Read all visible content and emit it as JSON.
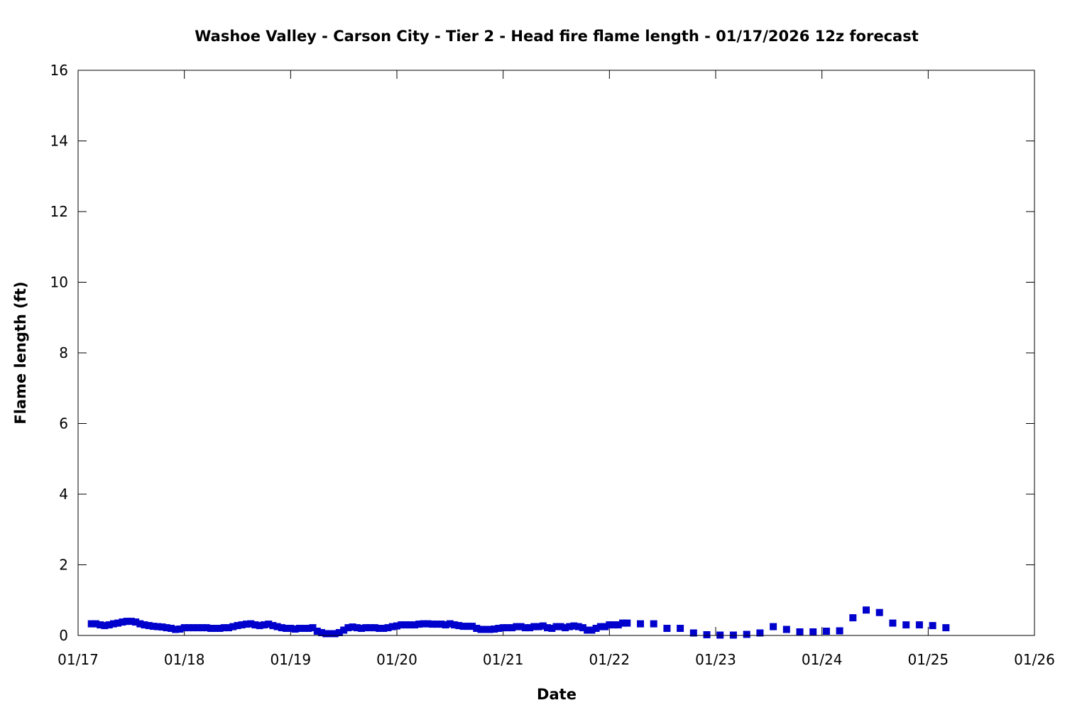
{
  "chart_data": {
    "type": "scatter",
    "title": "Washoe Valley - Carson City - Tier 2 - Head fire flame length - 01/17/2026 12z forecast",
    "xlabel": "Date",
    "ylabel": "Flame length (ft)",
    "xlim": [
      "2026-01-17T00:00",
      "2026-01-26T00:00"
    ],
    "ylim": [
      0,
      16
    ],
    "x_tick_labels": [
      "01/17",
      "01/18",
      "01/19",
      "01/20",
      "01/21",
      "01/22",
      "01/23",
      "01/24",
      "01/25",
      "01/26"
    ],
    "y_tick_labels": [
      "0",
      "2",
      "4",
      "6",
      "8",
      "10",
      "12",
      "14",
      "16"
    ],
    "grid": false,
    "legend": "none",
    "marker": "square",
    "color": "#0000cc",
    "series": [
      {
        "x": [
          "2026-01-17T03:00",
          "2026-01-17T04:00",
          "2026-01-17T05:00",
          "2026-01-17T06:00",
          "2026-01-17T07:00",
          "2026-01-17T08:00",
          "2026-01-17T09:00",
          "2026-01-17T10:00",
          "2026-01-17T11:00",
          "2026-01-17T12:00",
          "2026-01-17T13:00",
          "2026-01-17T14:00",
          "2026-01-17T15:00",
          "2026-01-17T16:00",
          "2026-01-17T17:00",
          "2026-01-17T18:00",
          "2026-01-17T19:00",
          "2026-01-17T20:00",
          "2026-01-17T21:00",
          "2026-01-17T22:00",
          "2026-01-17T23:00",
          "2026-01-18T00:00",
          "2026-01-18T01:00",
          "2026-01-18T02:00",
          "2026-01-18T03:00",
          "2026-01-18T04:00",
          "2026-01-18T05:00",
          "2026-01-18T06:00",
          "2026-01-18T07:00",
          "2026-01-18T08:00",
          "2026-01-18T09:00",
          "2026-01-18T10:00",
          "2026-01-18T11:00",
          "2026-01-18T12:00",
          "2026-01-18T13:00",
          "2026-01-18T14:00",
          "2026-01-18T15:00",
          "2026-01-18T16:00",
          "2026-01-18T17:00",
          "2026-01-18T18:00",
          "2026-01-18T19:00",
          "2026-01-18T20:00",
          "2026-01-18T21:00",
          "2026-01-18T22:00",
          "2026-01-18T23:00",
          "2026-01-19T00:00",
          "2026-01-19T01:00",
          "2026-01-19T02:00",
          "2026-01-19T03:00",
          "2026-01-19T04:00",
          "2026-01-19T05:00",
          "2026-01-19T06:00",
          "2026-01-19T07:00",
          "2026-01-19T08:00",
          "2026-01-19T09:00",
          "2026-01-19T10:00",
          "2026-01-19T11:00",
          "2026-01-19T12:00",
          "2026-01-19T13:00",
          "2026-01-19T14:00",
          "2026-01-19T15:00",
          "2026-01-19T16:00",
          "2026-01-19T17:00",
          "2026-01-19T18:00",
          "2026-01-19T19:00",
          "2026-01-19T20:00",
          "2026-01-19T21:00",
          "2026-01-19T22:00",
          "2026-01-19T23:00",
          "2026-01-20T00:00",
          "2026-01-20T01:00",
          "2026-01-20T02:00",
          "2026-01-20T03:00",
          "2026-01-20T04:00",
          "2026-01-20T05:00",
          "2026-01-20T06:00",
          "2026-01-20T07:00",
          "2026-01-20T08:00",
          "2026-01-20T09:00",
          "2026-01-20T10:00",
          "2026-01-20T11:00",
          "2026-01-20T12:00",
          "2026-01-20T13:00",
          "2026-01-20T14:00",
          "2026-01-20T15:00",
          "2026-01-20T16:00",
          "2026-01-20T17:00",
          "2026-01-20T18:00",
          "2026-01-20T19:00",
          "2026-01-20T20:00",
          "2026-01-20T21:00",
          "2026-01-20T22:00",
          "2026-01-20T23:00",
          "2026-01-21T00:00",
          "2026-01-21T01:00",
          "2026-01-21T02:00",
          "2026-01-21T03:00",
          "2026-01-21T04:00",
          "2026-01-21T05:00",
          "2026-01-21T06:00",
          "2026-01-21T07:00",
          "2026-01-21T08:00",
          "2026-01-21T09:00",
          "2026-01-21T10:00",
          "2026-01-21T11:00",
          "2026-01-21T12:00",
          "2026-01-21T13:00",
          "2026-01-21T14:00",
          "2026-01-21T15:00",
          "2026-01-21T16:00",
          "2026-01-21T17:00",
          "2026-01-21T18:00",
          "2026-01-21T19:00",
          "2026-01-21T20:00",
          "2026-01-21T21:00",
          "2026-01-21T22:00",
          "2026-01-21T23:00",
          "2026-01-22T00:00",
          "2026-01-22T01:00",
          "2026-01-22T02:00",
          "2026-01-22T03:00",
          "2026-01-22T04:00",
          "2026-01-22T07:00",
          "2026-01-22T10:00",
          "2026-01-22T13:00",
          "2026-01-22T16:00",
          "2026-01-22T19:00",
          "2026-01-22T22:00",
          "2026-01-23T01:00",
          "2026-01-23T04:00",
          "2026-01-23T07:00",
          "2026-01-23T10:00",
          "2026-01-23T13:00",
          "2026-01-23T16:00",
          "2026-01-23T19:00",
          "2026-01-23T22:00",
          "2026-01-24T01:00",
          "2026-01-24T04:00",
          "2026-01-24T07:00",
          "2026-01-24T10:00",
          "2026-01-24T13:00",
          "2026-01-24T16:00",
          "2026-01-24T19:00",
          "2026-01-24T22:00",
          "2026-01-25T01:00",
          "2026-01-25T04:00"
        ],
        "y": [
          0.33,
          0.33,
          0.3,
          0.28,
          0.3,
          0.33,
          0.35,
          0.38,
          0.4,
          0.4,
          0.38,
          0.33,
          0.3,
          0.28,
          0.26,
          0.25,
          0.24,
          0.22,
          0.2,
          0.17,
          0.18,
          0.22,
          0.22,
          0.22,
          0.22,
          0.22,
          0.22,
          0.2,
          0.2,
          0.2,
          0.22,
          0.22,
          0.25,
          0.28,
          0.3,
          0.32,
          0.33,
          0.3,
          0.28,
          0.3,
          0.32,
          0.28,
          0.25,
          0.22,
          0.2,
          0.2,
          0.18,
          0.2,
          0.2,
          0.2,
          0.22,
          0.12,
          0.08,
          0.05,
          0.05,
          0.05,
          0.08,
          0.15,
          0.22,
          0.24,
          0.22,
          0.2,
          0.22,
          0.22,
          0.22,
          0.2,
          0.2,
          0.22,
          0.25,
          0.27,
          0.3,
          0.3,
          0.3,
          0.3,
          0.32,
          0.33,
          0.33,
          0.32,
          0.32,
          0.32,
          0.3,
          0.33,
          0.3,
          0.28,
          0.26,
          0.26,
          0.26,
          0.2,
          0.17,
          0.17,
          0.17,
          0.18,
          0.2,
          0.22,
          0.22,
          0.22,
          0.25,
          0.25,
          0.22,
          0.22,
          0.25,
          0.25,
          0.27,
          0.22,
          0.2,
          0.25,
          0.25,
          0.22,
          0.25,
          0.27,
          0.25,
          0.22,
          0.15,
          0.15,
          0.2,
          0.25,
          0.25,
          0.3,
          0.3,
          0.3,
          0.35,
          0.35,
          0.33,
          0.33,
          0.2,
          0.2,
          0.07,
          0.02,
          0.01,
          0.01,
          0.03,
          0.07,
          0.25,
          0.17,
          0.1,
          0.1,
          0.12,
          0.13,
          0.5,
          0.72,
          0.65,
          0.35,
          0.3,
          0.3,
          0.28,
          0.22
        ]
      }
    ]
  }
}
